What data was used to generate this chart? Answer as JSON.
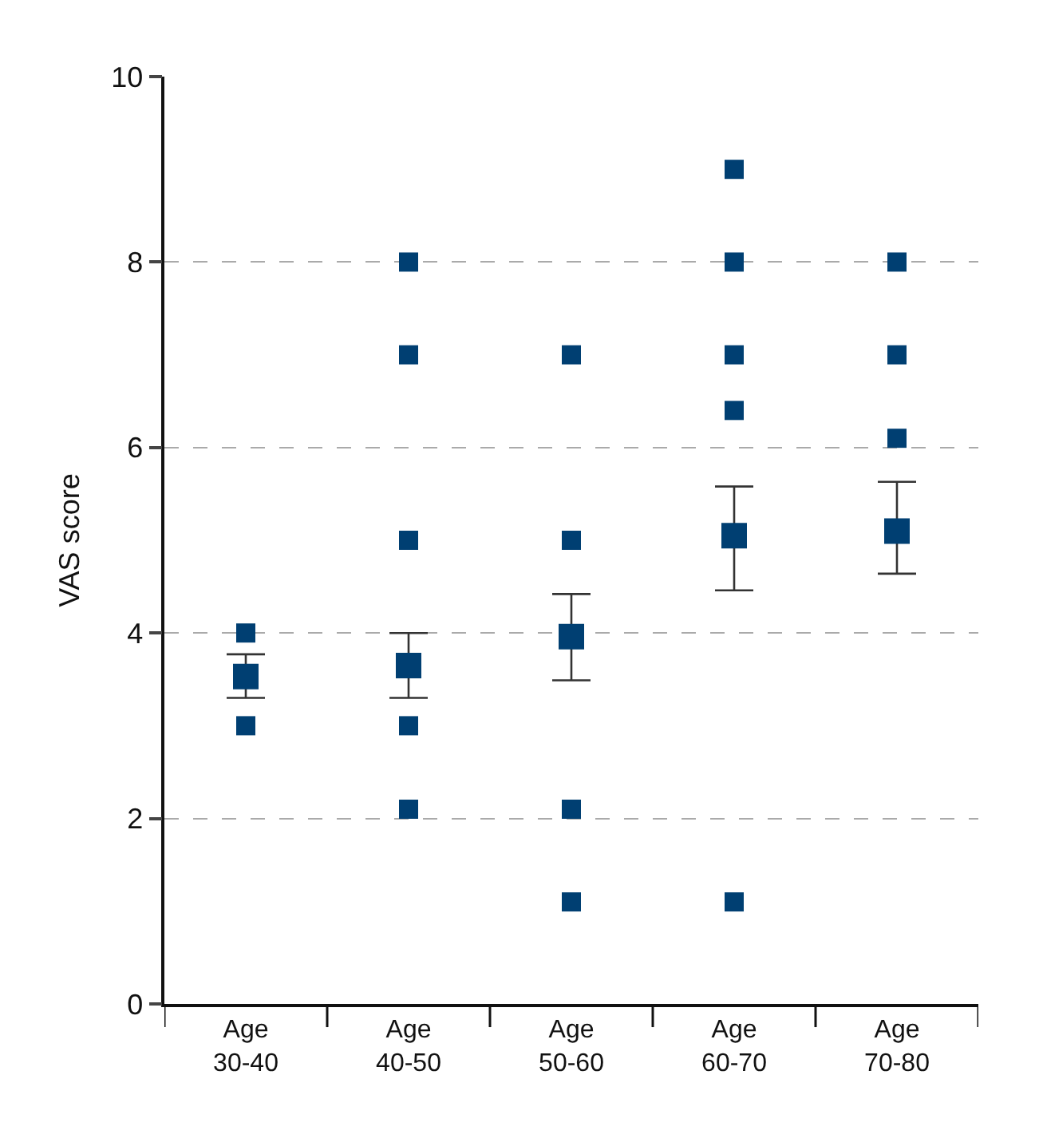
{
  "chart_data": {
    "type": "scatter",
    "ylabel": "VAS score",
    "categories": [
      "Age\n30-40",
      "Age\n40-50",
      "Age\n50-60",
      "Age\n60-70",
      "Age\n70-80"
    ],
    "series": [
      {
        "color": "#003f72",
        "x": [
          "Age\n30-40",
          "Age\n30-40",
          "Age\n40-50",
          "Age\n40-50",
          "Age\n40-50",
          "Age\n40-50",
          "Age\n40-50",
          "Age\n50-60",
          "Age\n50-60",
          "Age\n50-60",
          "Age\n50-60",
          "Age\n60-70",
          "Age\n60-70",
          "Age\n60-70",
          "Age\n60-70",
          "Age\n60-70",
          "Age\n70-80",
          "Age\n70-80",
          "Age\n70-80"
        ],
        "values": [
          4.0,
          3.0,
          8.0,
          7.0,
          5.0,
          3.0,
          2.1,
          7.0,
          5.0,
          2.1,
          1.1,
          9.0,
          8.0,
          7.0,
          6.4,
          1.1,
          8.0,
          7.0,
          6.1
        ]
      },
      {
        "color": "#003f72",
        "values": [
          3.53,
          3.65,
          3.96,
          5.05,
          5.1
        ],
        "errors": [
          [
            3.3,
            3.77
          ],
          [
            3.3,
            4.0
          ],
          [
            3.49,
            4.42
          ],
          [
            4.46,
            5.58
          ],
          [
            4.64,
            5.63
          ]
        ]
      }
    ],
    "ylim": [
      0,
      10
    ],
    "yticks": [
      0,
      2,
      4,
      6,
      8,
      10
    ],
    "grid": "y",
    "marker": "square"
  }
}
